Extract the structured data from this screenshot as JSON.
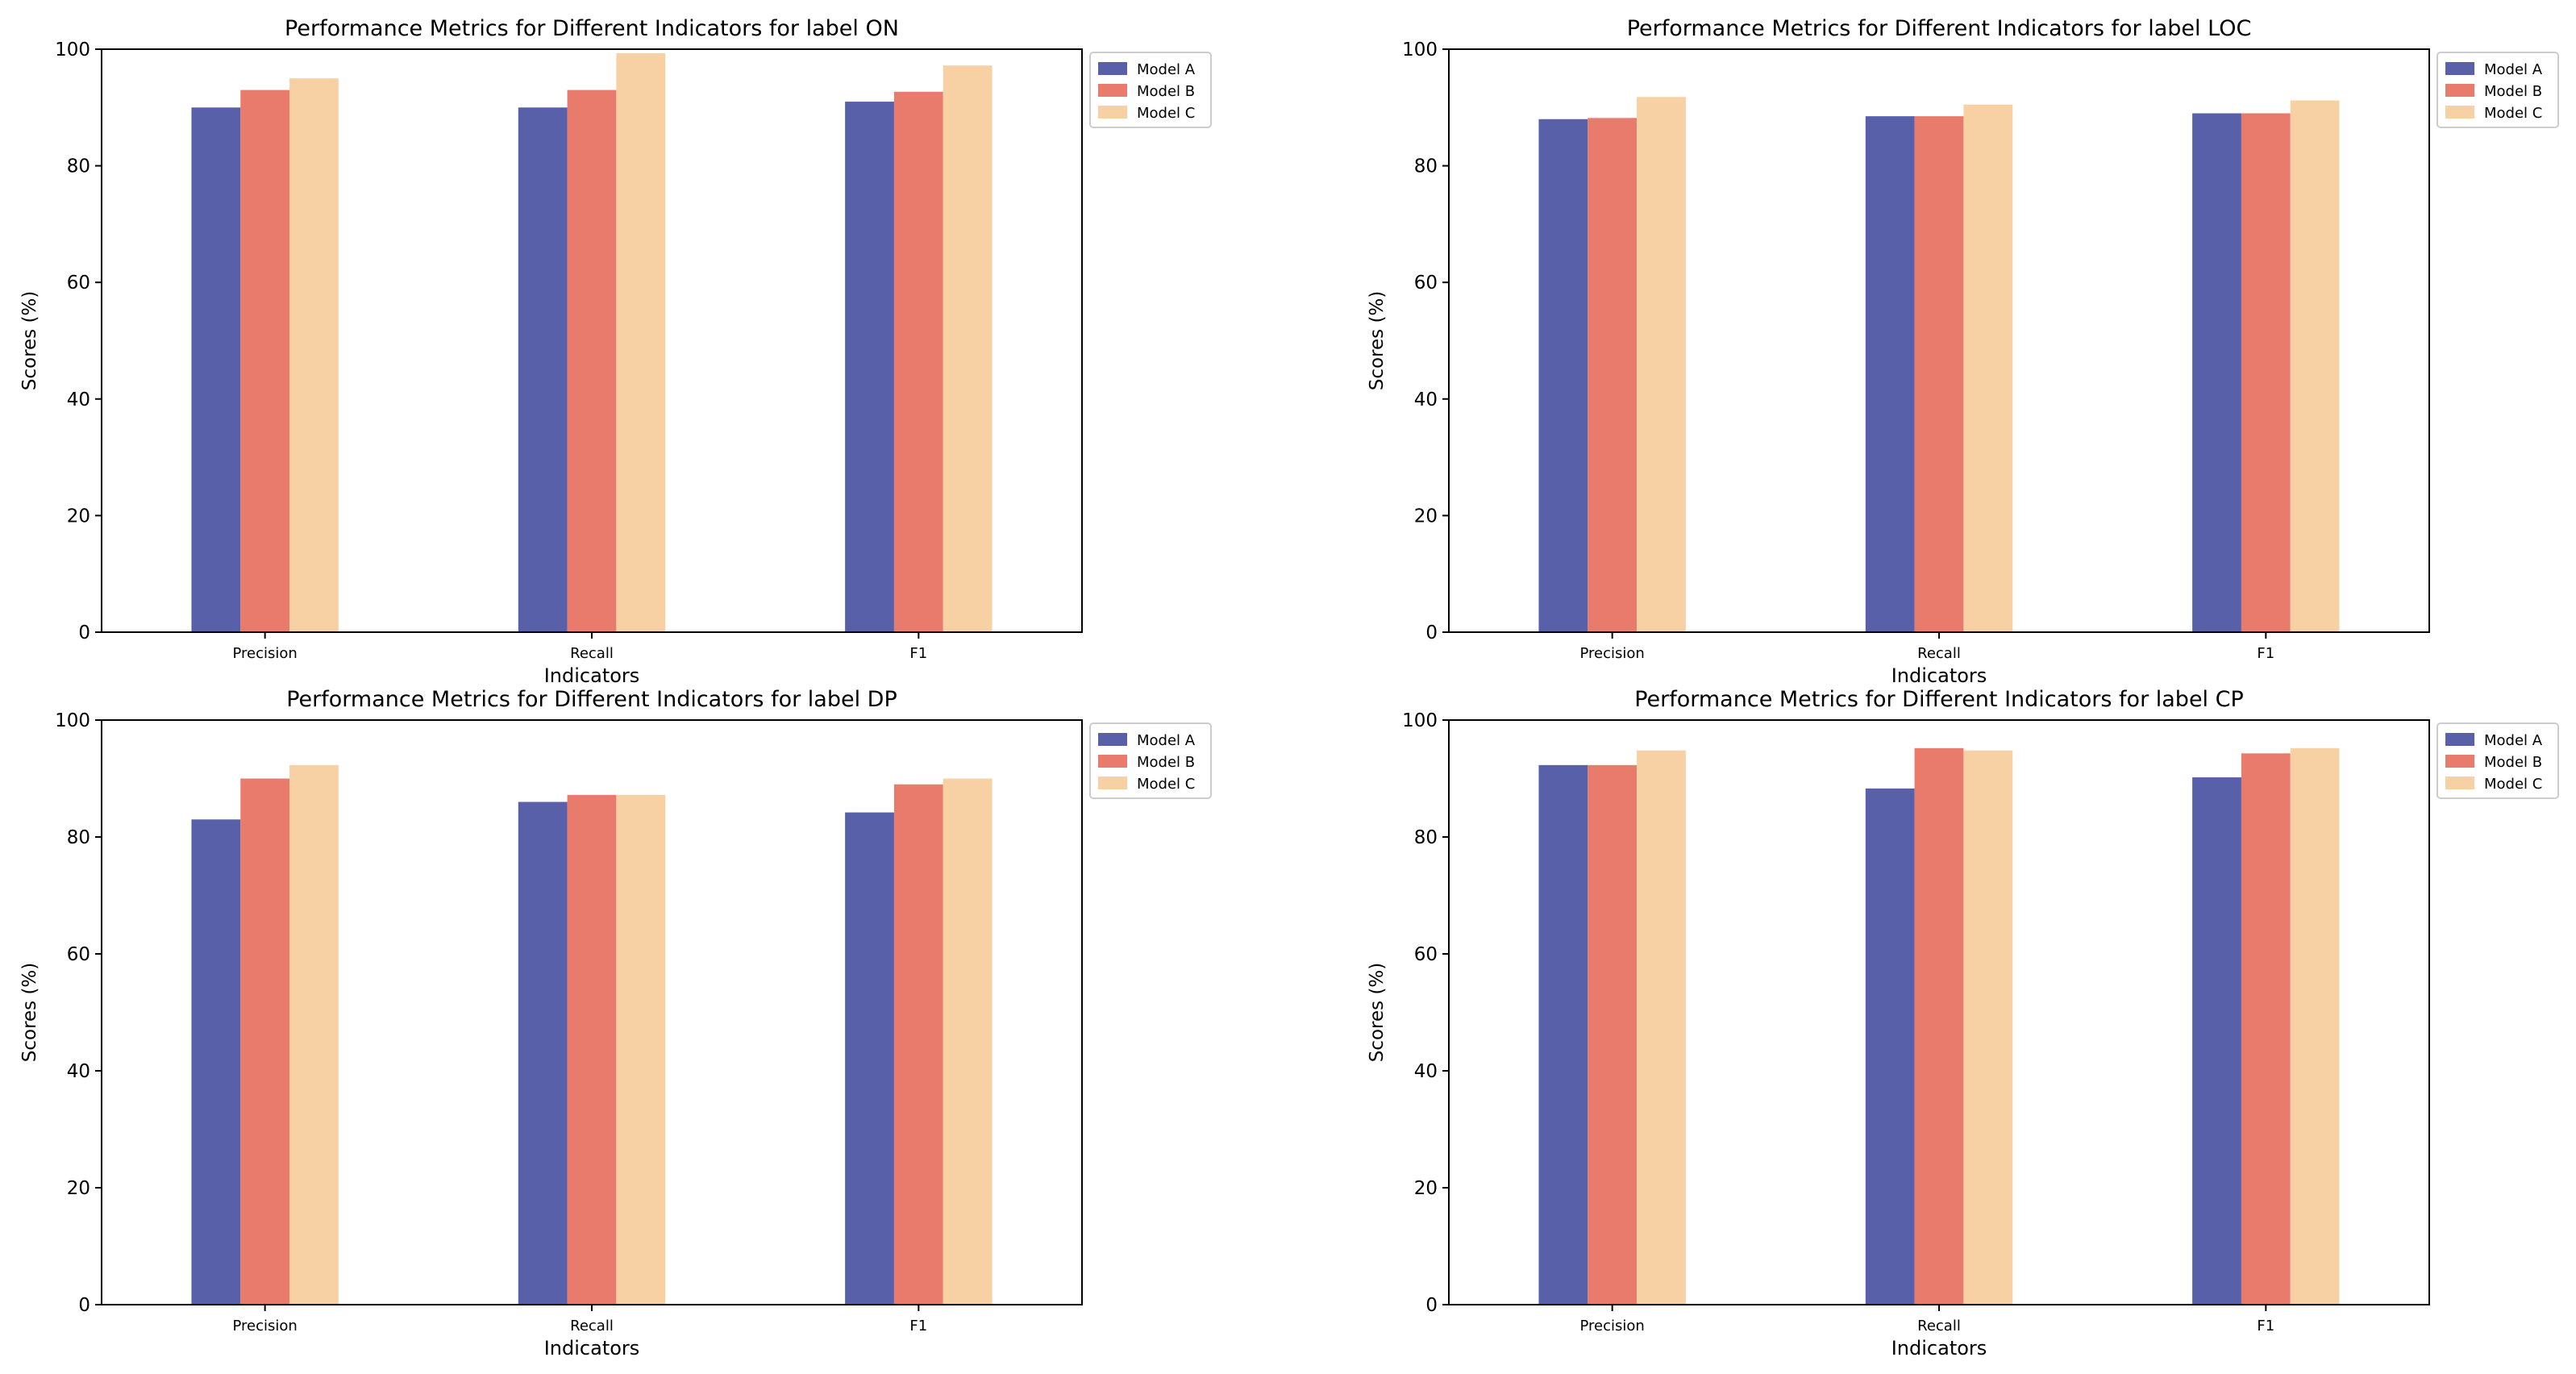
{
  "figure": {
    "colors": {
      "axis": "#000000",
      "background": "#ffffff",
      "legend_border": "#cccccc"
    }
  },
  "chart_data": [
    {
      "type": "bar",
      "title": "Performance Metrics for Different Indicators for label ON",
      "xlabel": "Indicators",
      "ylabel": "Scores (%)",
      "categories": [
        "Precision",
        "Recall",
        "F1"
      ],
      "ylim": [
        0,
        100
      ],
      "yticks": [
        "0",
        "20",
        "40",
        "60",
        "80",
        "100"
      ],
      "legend": "top-right-outside",
      "grid": false,
      "series": [
        {
          "name": "Model A",
          "color": "#5760a9",
          "values": [
            90,
            90,
            91
          ]
        },
        {
          "name": "Model B",
          "color": "#e97b6d",
          "values": [
            93,
            93,
            92.7
          ]
        },
        {
          "name": "Model C",
          "color": "#f7d1a4",
          "values": [
            95,
            99.3,
            97.2
          ]
        }
      ]
    },
    {
      "type": "bar",
      "title": "Performance Metrics for Different Indicators for label LOC",
      "xlabel": "Indicators",
      "ylabel": "Scores (%)",
      "categories": [
        "Precision",
        "Recall",
        "F1"
      ],
      "ylim": [
        0,
        100
      ],
      "yticks": [
        "0",
        "20",
        "40",
        "60",
        "80",
        "100"
      ],
      "legend": "top-right-outside",
      "grid": false,
      "series": [
        {
          "name": "Model A",
          "color": "#5760a9",
          "values": [
            88,
            88.5,
            89
          ]
        },
        {
          "name": "Model B",
          "color": "#e97b6d",
          "values": [
            88.2,
            88.5,
            89
          ]
        },
        {
          "name": "Model C",
          "color": "#f7d1a4",
          "values": [
            91.8,
            90.5,
            91.2
          ]
        }
      ]
    },
    {
      "type": "bar",
      "title": "Performance Metrics for Different Indicators for label DP",
      "xlabel": "Indicators",
      "ylabel": "Scores (%)",
      "categories": [
        "Precision",
        "Recall",
        "F1"
      ],
      "ylim": [
        0,
        100
      ],
      "yticks": [
        "0",
        "20",
        "40",
        "60",
        "80",
        "100"
      ],
      "legend": "top-right-outside",
      "grid": false,
      "series": [
        {
          "name": "Model A",
          "color": "#5760a9",
          "values": [
            83,
            86,
            84.2
          ]
        },
        {
          "name": "Model B",
          "color": "#e97b6d",
          "values": [
            90,
            87.2,
            89
          ]
        },
        {
          "name": "Model C",
          "color": "#f7d1a4",
          "values": [
            92.3,
            87.2,
            90
          ]
        }
      ]
    },
    {
      "type": "bar",
      "title": "Performance Metrics for Different Indicators for label CP",
      "xlabel": "Indicators",
      "ylabel": "Scores (%)",
      "categories": [
        "Precision",
        "Recall",
        "F1"
      ],
      "ylim": [
        0,
        100
      ],
      "yticks": [
        "0",
        "20",
        "40",
        "60",
        "80",
        "100"
      ],
      "legend": "top-right-outside",
      "grid": false,
      "series": [
        {
          "name": "Model A",
          "color": "#5760a9",
          "values": [
            92.3,
            88.3,
            90.2
          ]
        },
        {
          "name": "Model B",
          "color": "#e97b6d",
          "values": [
            92.3,
            95.2,
            94.3
          ]
        },
        {
          "name": "Model C",
          "color": "#f7d1a4",
          "values": [
            94.8,
            94.8,
            95.2
          ]
        }
      ]
    }
  ]
}
